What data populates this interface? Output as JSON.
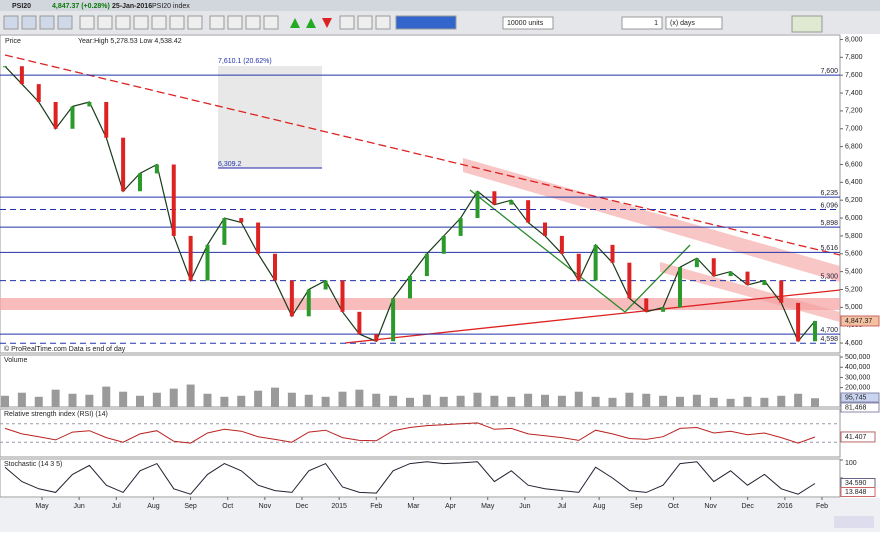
{
  "toolbar": {
    "symbol": "PSI20",
    "quote": "4,847.37 (+0.28%)",
    "date": "25-Jan-2016",
    "name": "PSI20 index",
    "units": "10000 units",
    "period_count": "1",
    "period_unit": "(x) days"
  },
  "price_panel": {
    "label": "Price",
    "info": "Year:High 5,278.53 Low 4,538.42",
    "footer": "© ProRealTime.com  Data is end of day",
    "ylim": [
      4500,
      8050
    ],
    "yticks": [
      {
        "value": 4600,
        "label": "4,600"
      },
      {
        "value": 4800,
        "label": "4,800"
      },
      {
        "value": 5000,
        "label": "5,000"
      },
      {
        "value": 5200,
        "label": "5,200"
      },
      {
        "value": 5400,
        "label": "5,400"
      },
      {
        "value": 5600,
        "label": "5,600"
      },
      {
        "value": 5800,
        "label": "5,800"
      },
      {
        "value": 6000,
        "label": "6,000"
      },
      {
        "value": 6200,
        "label": "6,200"
      },
      {
        "value": 6400,
        "label": "6,400"
      },
      {
        "value": 6600,
        "label": "6,600"
      },
      {
        "value": 6800,
        "label": "6,800"
      },
      {
        "value": 7000,
        "label": "7,000"
      },
      {
        "value": 7200,
        "label": "7,200"
      },
      {
        "value": 7400,
        "label": "7,400"
      },
      {
        "value": 7600,
        "label": "7,600"
      },
      {
        "value": 7800,
        "label": "7,800"
      },
      {
        "value": 8000,
        "label": "8,000"
      }
    ],
    "levels": [
      {
        "value": 7600,
        "label": "7,600",
        "style": "solid"
      },
      {
        "value": 6235,
        "label": "6,235",
        "style": "solid"
      },
      {
        "value": 6096,
        "label": "6,096",
        "style": "dashed"
      },
      {
        "value": 5898,
        "label": "5,898",
        "style": "solid"
      },
      {
        "value": 5616,
        "label": "5,616",
        "style": "solid"
      },
      {
        "value": 5300,
        "label": "5,300",
        "style": "dashed"
      },
      {
        "value": 4700,
        "label": "4,700",
        "style": "solid"
      },
      {
        "value": 4598,
        "label": "4,598",
        "style": "dashed"
      }
    ],
    "box_top": "7,610.1 (20.62%)",
    "box_bottom": "6,309.2",
    "close": [
      7700,
      7500,
      7300,
      7000,
      7250,
      7300,
      6900,
      6300,
      6500,
      6600,
      5800,
      5300,
      5700,
      6000,
      5950,
      5600,
      5300,
      4900,
      5200,
      5300,
      4950,
      4700,
      4620,
      5100,
      5350,
      5600,
      5800,
      6000,
      6300,
      6150,
      6200,
      5950,
      5800,
      5600,
      5300,
      5700,
      5500,
      5100,
      4950,
      5000,
      5450,
      5550,
      5350,
      5400,
      5250,
      5300,
      5050,
      4620,
      4847.37
    ],
    "last": {
      "value": 4847.37,
      "label": "4,847.37"
    }
  },
  "volume_panel": {
    "label": "Volume",
    "ylim": [
      0,
      520000
    ],
    "yticks": [
      {
        "value": 100000,
        "label": "100,000"
      },
      {
        "value": 200000,
        "label": "200,000"
      },
      {
        "value": 300000,
        "label": "300,000"
      },
      {
        "value": 400000,
        "label": "400,000"
      },
      {
        "value": 500000,
        "label": "500,000"
      }
    ],
    "values": [
      120000,
      150000,
      110000,
      180000,
      140000,
      130000,
      210000,
      160000,
      120000,
      150000,
      190000,
      230000,
      140000,
      110000,
      120000,
      170000,
      200000,
      150000,
      130000,
      110000,
      160000,
      180000,
      140000,
      120000,
      100000,
      130000,
      110000,
      120000,
      150000,
      120000,
      110000,
      140000,
      130000,
      120000,
      160000,
      110000,
      100000,
      150000,
      140000,
      120000,
      110000,
      130000,
      100000,
      90000,
      110000,
      100000,
      120000,
      140000,
      95745
    ],
    "last_labels": [
      "95,745",
      "81,468"
    ]
  },
  "rsi_panel": {
    "label": "Relative strength index (RSI) (14)",
    "ylim": [
      0,
      100
    ],
    "levels": [
      30,
      70
    ],
    "values": [
      60,
      48,
      42,
      35,
      52,
      55,
      40,
      30,
      48,
      55,
      32,
      28,
      50,
      58,
      54,
      42,
      36,
      30,
      52,
      56,
      40,
      34,
      33,
      55,
      62,
      66,
      68,
      70,
      72,
      58,
      60,
      48,
      44,
      40,
      34,
      56,
      48,
      38,
      36,
      42,
      60,
      62,
      50,
      54,
      46,
      50,
      40,
      28,
      41.407
    ],
    "last": {
      "value": 41.407,
      "label": "41.407"
    }
  },
  "stoch_panel": {
    "label": "Stochastic (14 3 5)",
    "ylim": [
      0,
      100
    ],
    "yticks": [
      50,
      100
    ],
    "values": [
      80,
      40,
      20,
      10,
      60,
      85,
      30,
      10,
      70,
      90,
      20,
      5,
      60,
      90,
      70,
      30,
      15,
      10,
      70,
      90,
      25,
      10,
      8,
      70,
      90,
      95,
      90,
      92,
      95,
      40,
      70,
      30,
      20,
      15,
      10,
      80,
      50,
      15,
      10,
      30,
      90,
      95,
      40,
      70,
      30,
      60,
      20,
      5,
      34.59
    ],
    "last_labels": [
      {
        "value": 34.59,
        "label": "34.590"
      },
      {
        "value": 13.848,
        "label": "13.848"
      }
    ]
  },
  "x_axis": {
    "months": [
      "May",
      "Jun",
      "Jul",
      "Aug",
      "Sep",
      "Oct",
      "Nov",
      "Dec",
      "2015",
      "Feb",
      "Mar",
      "Apr",
      "May",
      "Jun",
      "Jul",
      "Aug",
      "Sep",
      "Oct",
      "Nov",
      "Dec",
      "2016",
      "Feb"
    ]
  }
}
